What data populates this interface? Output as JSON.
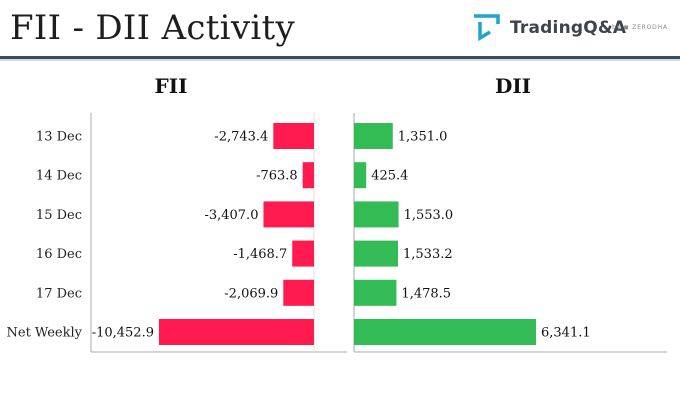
{
  "page": {
    "title": "FII - DII Activity"
  },
  "brand": {
    "name": "TradingQ&A",
    "sub": "by ◼ ZERODHA",
    "logo_icon": "tradingqa-logo-icon",
    "logo_color": "#1fa3cf"
  },
  "colors": {
    "header_rule": "#3e4a5c",
    "fii_bar": "#ff1a4f",
    "dii_bar": "#33bb55",
    "axis": "#aaaaaa"
  },
  "chart_data": [
    {
      "type": "bar",
      "orientation": "horizontal",
      "title": "FII",
      "categories": [
        "13 Dec",
        "14 Dec",
        "15 Dec",
        "16 Dec",
        "17 Dec",
        "Net Weekly"
      ],
      "values": [
        -2743.4,
        -763.8,
        -3407.0,
        -1468.7,
        -2069.9,
        -10452.9
      ],
      "value_labels": [
        "-2,743.4",
        "-763.8",
        "-3,407.0",
        "-1,468.7",
        "-2,069.9",
        "-10,452.9"
      ],
      "xlim": [
        -10452.9,
        0
      ],
      "color": "#ff1a4f",
      "grid": false
    },
    {
      "type": "bar",
      "orientation": "horizontal",
      "title": "DII",
      "categories": [
        "13 Dec",
        "14 Dec",
        "15 Dec",
        "16 Dec",
        "17 Dec",
        "Net Weekly"
      ],
      "values": [
        1351.0,
        425.4,
        1553.0,
        1533.2,
        1478.5,
        6341.1
      ],
      "value_labels": [
        "1,351.0",
        "425.4",
        "1,553.0",
        "1,533.2",
        "1,478.5",
        "6,341.1"
      ],
      "xlim": [
        0,
        6341.1
      ],
      "color": "#33bb55",
      "grid": false
    }
  ]
}
